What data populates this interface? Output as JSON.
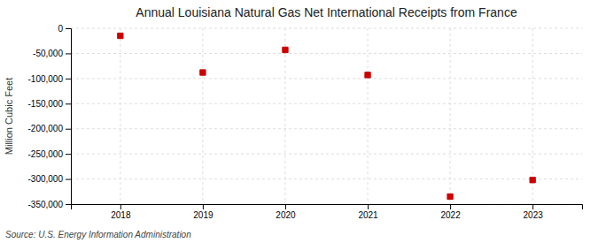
{
  "chart_data": {
    "type": "scatter",
    "title": "Annual Louisiana Natural Gas Net International Receipts from France",
    "ylabel": "Million Cubic Feet",
    "source": "Source: U.S. Energy Information Administration",
    "x": [
      2018,
      2019,
      2020,
      2021,
      2022,
      2023
    ],
    "values": [
      -15000,
      -88000,
      -43000,
      -93000,
      -335000,
      -302000
    ],
    "xlim": [
      2017.4,
      2023.6
    ],
    "xticks": [
      2018,
      2019,
      2020,
      2021,
      2022,
      2023
    ],
    "ylim": [
      -350000,
      0
    ],
    "yticks": [
      0,
      {
        "value": -50000,
        "label": "-50,000"
      },
      {
        "value": -100000,
        "label": "-100,000"
      },
      {
        "value": -150000,
        "label": "-150,000"
      },
      {
        "value": -200000,
        "label": "-200,000"
      },
      {
        "value": -250000,
        "label": "-250,000"
      },
      {
        "value": -300000,
        "label": "-300,000"
      },
      {
        "value": -350000,
        "label": "-350,000"
      }
    ],
    "color": "#cc0000",
    "marker": "square",
    "grid": true
  }
}
